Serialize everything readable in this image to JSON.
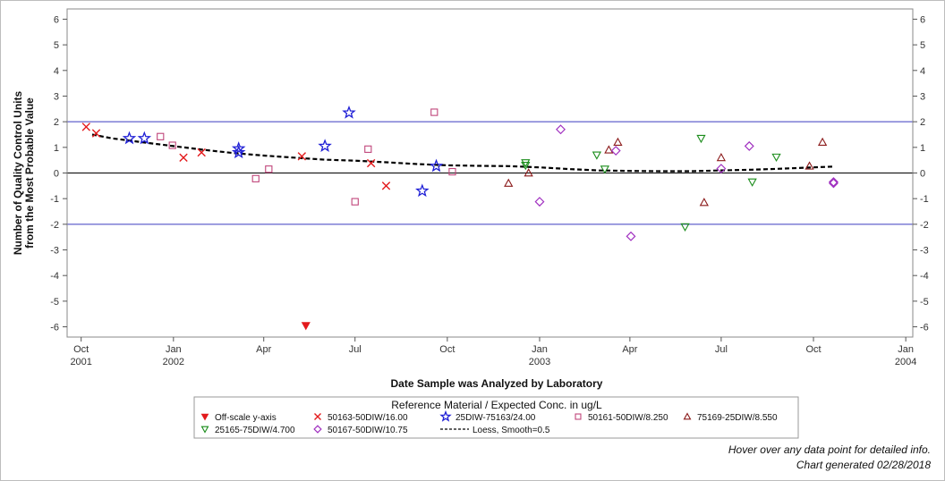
{
  "chart_data": {
    "type": "scatter",
    "xlabel": "Date Sample was Analyzed by Laboratory",
    "ylabel_lines": [
      "Number of Quality Control Units",
      "from the Most Probable Value"
    ],
    "ylim": [
      -6.4,
      6.4
    ],
    "yticks": [
      -6,
      -5,
      -4,
      -3,
      -2,
      -1,
      0,
      1,
      2,
      3,
      4,
      5,
      6
    ],
    "xlim": [
      "2001-09-17",
      "2004-01-08"
    ],
    "xticks": [
      {
        "date": "2001-10-01",
        "lines": [
          "Oct",
          "2001"
        ]
      },
      {
        "date": "2002-01-01",
        "lines": [
          "Jan",
          "2002"
        ]
      },
      {
        "date": "2002-04-01",
        "lines": [
          "Apr"
        ]
      },
      {
        "date": "2002-07-01",
        "lines": [
          "Jul"
        ]
      },
      {
        "date": "2002-10-01",
        "lines": [
          "Oct"
        ]
      },
      {
        "date": "2003-01-01",
        "lines": [
          "Jan",
          "2003"
        ]
      },
      {
        "date": "2003-04-01",
        "lines": [
          "Apr"
        ]
      },
      {
        "date": "2003-07-01",
        "lines": [
          "Jul"
        ]
      },
      {
        "date": "2003-10-01",
        "lines": [
          "Oct"
        ]
      },
      {
        "date": "2004-01-01",
        "lines": [
          "Jan",
          "2004"
        ]
      }
    ],
    "reference_lines": [
      {
        "y": 2,
        "color": "#3b3bbf"
      },
      {
        "y": 0,
        "color": "#000000"
      },
      {
        "y": -2,
        "color": "#3b3bbf"
      }
    ],
    "legend": {
      "title": "Reference Material / Expected Conc. in ug/L",
      "placement": "bottom-center"
    },
    "series": [
      {
        "name": "Off-scale y-axis",
        "marker": "triangle-down-filled",
        "color": "#e31a1c",
        "points": [
          {
            "x": "2002-05-13",
            "y": -5.95
          }
        ]
      },
      {
        "name": "50163-50DIW/16.00",
        "marker": "x",
        "color": "#e31a1c",
        "points": [
          {
            "x": "2001-10-06",
            "y": 1.8
          },
          {
            "x": "2001-10-16",
            "y": 1.55
          },
          {
            "x": "2002-01-11",
            "y": 0.6
          },
          {
            "x": "2002-01-29",
            "y": 0.8
          },
          {
            "x": "2002-05-09",
            "y": 0.65
          },
          {
            "x": "2002-07-17",
            "y": 0.38
          },
          {
            "x": "2002-08-01",
            "y": -0.5
          }
        ]
      },
      {
        "name": "25DIW-75163/24.00",
        "marker": "star",
        "color": "#1f1fd6",
        "points": [
          {
            "x": "2001-11-18",
            "y": 1.35
          },
          {
            "x": "2001-12-03",
            "y": 1.35
          },
          {
            "x": "2002-03-07",
            "y": 0.95
          },
          {
            "x": "2002-03-07",
            "y": 0.8
          },
          {
            "x": "2002-06-01",
            "y": 1.05
          },
          {
            "x": "2002-06-25",
            "y": 2.35
          },
          {
            "x": "2002-09-06",
            "y": -0.7
          },
          {
            "x": "2002-09-20",
            "y": 0.27
          }
        ]
      },
      {
        "name": "50161-50DIW/8.250",
        "marker": "square",
        "color": "#c0457a",
        "points": [
          {
            "x": "2001-12-19",
            "y": 1.42
          },
          {
            "x": "2001-12-31",
            "y": 1.08
          },
          {
            "x": "2002-03-24",
            "y": -0.22
          },
          {
            "x": "2002-04-06",
            "y": 0.15
          },
          {
            "x": "2002-07-01",
            "y": -1.12
          },
          {
            "x": "2002-07-14",
            "y": 0.93
          },
          {
            "x": "2002-09-18",
            "y": 2.37
          },
          {
            "x": "2002-10-06",
            "y": 0.05
          }
        ]
      },
      {
        "name": "75169-25DIW/8.550",
        "marker": "triangle-up",
        "color": "#8b1a1a",
        "points": [
          {
            "x": "2002-12-01",
            "y": -0.4
          },
          {
            "x": "2002-12-21",
            "y": 0.0
          },
          {
            "x": "2003-03-11",
            "y": 0.9
          },
          {
            "x": "2003-03-20",
            "y": 1.2
          },
          {
            "x": "2003-06-14",
            "y": -1.15
          },
          {
            "x": "2003-07-01",
            "y": 0.6
          },
          {
            "x": "2003-09-27",
            "y": 0.27
          },
          {
            "x": "2003-10-10",
            "y": 1.2
          }
        ]
      },
      {
        "name": "25165-75DIW/4.700",
        "marker": "triangle-down",
        "color": "#1a8c1a",
        "points": [
          {
            "x": "2002-12-18",
            "y": 0.3
          },
          {
            "x": "2002-12-18",
            "y": 0.4
          },
          {
            "x": "2003-02-27",
            "y": 0.7
          },
          {
            "x": "2003-03-07",
            "y": 0.15
          },
          {
            "x": "2003-05-26",
            "y": -2.1
          },
          {
            "x": "2003-06-11",
            "y": 1.35
          },
          {
            "x": "2003-08-01",
            "y": -0.35
          },
          {
            "x": "2003-08-25",
            "y": 0.62
          }
        ]
      },
      {
        "name": "50167-50DIW/10.75",
        "marker": "diamond",
        "color": "#a030c0",
        "points": [
          {
            "x": "2003-01-01",
            "y": -1.12
          },
          {
            "x": "2003-01-22",
            "y": 1.7
          },
          {
            "x": "2003-03-18",
            "y": 0.87
          },
          {
            "x": "2003-04-02",
            "y": -2.47
          },
          {
            "x": "2003-07-01",
            "y": 0.17
          },
          {
            "x": "2003-07-29",
            "y": 1.05
          },
          {
            "x": "2003-10-21",
            "y": -0.35
          },
          {
            "x": "2003-10-21",
            "y": -0.4
          }
        ]
      },
      {
        "name": "Loess, Smooth=0.5",
        "marker": "dashed-line",
        "color": "#000000",
        "points": [
          {
            "x": "2001-10-12",
            "y": 1.5
          },
          {
            "x": "2001-11-01",
            "y": 1.35
          },
          {
            "x": "2001-12-01",
            "y": 1.2
          },
          {
            "x": "2002-01-01",
            "y": 1.05
          },
          {
            "x": "2002-02-01",
            "y": 0.9
          },
          {
            "x": "2002-03-01",
            "y": 0.78
          },
          {
            "x": "2002-04-01",
            "y": 0.68
          },
          {
            "x": "2002-05-01",
            "y": 0.6
          },
          {
            "x": "2002-06-01",
            "y": 0.52
          },
          {
            "x": "2002-07-01",
            "y": 0.48
          },
          {
            "x": "2002-08-01",
            "y": 0.42
          },
          {
            "x": "2002-09-01",
            "y": 0.35
          },
          {
            "x": "2002-10-01",
            "y": 0.3
          },
          {
            "x": "2002-11-01",
            "y": 0.28
          },
          {
            "x": "2002-12-01",
            "y": 0.27
          },
          {
            "x": "2003-01-01",
            "y": 0.22
          },
          {
            "x": "2003-02-01",
            "y": 0.15
          },
          {
            "x": "2003-03-01",
            "y": 0.1
          },
          {
            "x": "2003-04-01",
            "y": 0.08
          },
          {
            "x": "2003-05-01",
            "y": 0.07
          },
          {
            "x": "2003-06-01",
            "y": 0.07
          },
          {
            "x": "2003-07-01",
            "y": 0.1
          },
          {
            "x": "2003-08-01",
            "y": 0.13
          },
          {
            "x": "2003-09-01",
            "y": 0.17
          },
          {
            "x": "2003-10-01",
            "y": 0.22
          },
          {
            "x": "2003-10-21",
            "y": 0.25
          }
        ]
      }
    ]
  },
  "footnotes": {
    "hover": "Hover over any data point for detailed info.",
    "generated": "Chart generated 02/28/2018"
  }
}
